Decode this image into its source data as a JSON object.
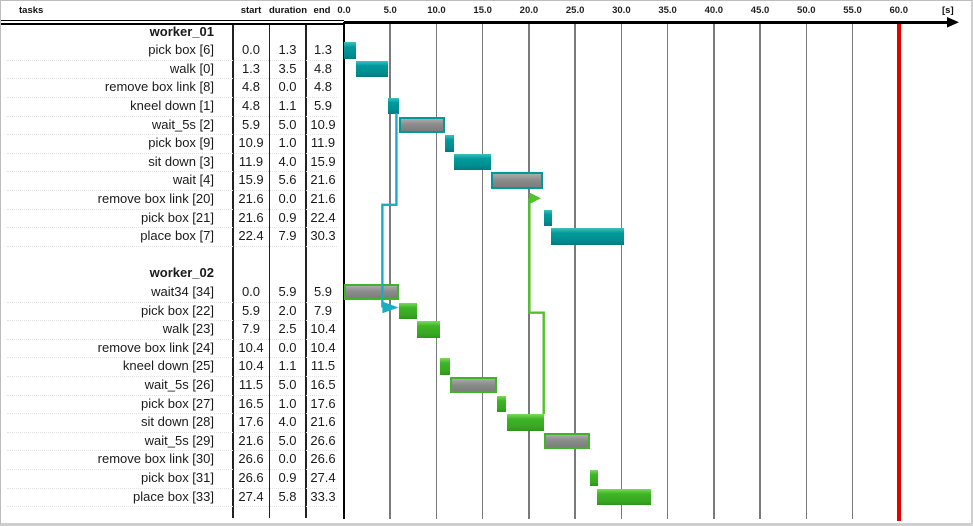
{
  "header": {
    "tasks_label": "tasks",
    "start_label": "start",
    "duration_label": "duration",
    "end_label": "end",
    "unit_label": "[s]"
  },
  "colors": {
    "worker_01_bar": "#009a9b",
    "worker_01_connector": "#18aec2",
    "worker_02_bar": "#3eb526",
    "worker_02_connector": "#4fc32a",
    "wait_fill": "#8c8c8c",
    "deadline_line": "#e60000",
    "gridline": "#7a7a7a",
    "axis": "#000000"
  },
  "chart_data": {
    "type": "gantt",
    "columns": [
      "tasks",
      "start",
      "duration",
      "end"
    ],
    "time_unit": "[s]",
    "axis": {
      "min": 0,
      "max": 60,
      "tick_step": 5,
      "deadline": 60,
      "tick_decimals": 1
    },
    "grid": true,
    "groups": [
      {
        "name": "worker_01",
        "color_key": "worker_01_bar",
        "tasks": [
          {
            "label": "pick box [6]",
            "start": 0.0,
            "duration": 1.3,
            "end": 1.3,
            "wait": false
          },
          {
            "label": "walk [0]",
            "start": 1.3,
            "duration": 3.5,
            "end": 4.8,
            "wait": false
          },
          {
            "label": "remove box link [8]",
            "start": 4.8,
            "duration": 0.0,
            "end": 4.8,
            "wait": false
          },
          {
            "label": "kneel down [1]",
            "start": 4.8,
            "duration": 1.1,
            "end": 5.9,
            "wait": false
          },
          {
            "label": "wait_5s [2]",
            "start": 5.9,
            "duration": 5.0,
            "end": 10.9,
            "wait": true
          },
          {
            "label": "pick box [9]",
            "start": 10.9,
            "duration": 1.0,
            "end": 11.9,
            "wait": false
          },
          {
            "label": "sit down [3]",
            "start": 11.9,
            "duration": 4.0,
            "end": 15.9,
            "wait": false
          },
          {
            "label": "wait [4]",
            "start": 15.9,
            "duration": 5.6,
            "end": 21.6,
            "wait": true
          },
          {
            "label": "remove box link [20]",
            "start": 21.6,
            "duration": 0.0,
            "end": 21.6,
            "wait": false
          },
          {
            "label": "pick box [21]",
            "start": 21.6,
            "duration": 0.9,
            "end": 22.4,
            "wait": false
          },
          {
            "label": "place box [7]",
            "start": 22.4,
            "duration": 7.9,
            "end": 30.3,
            "wait": false
          }
        ]
      },
      {
        "name": "worker_02",
        "color_key": "worker_02_bar",
        "tasks": [
          {
            "label": "wait34 [34]",
            "start": 0.0,
            "duration": 5.9,
            "end": 5.9,
            "wait": true
          },
          {
            "label": "pick box [22]",
            "start": 5.9,
            "duration": 2.0,
            "end": 7.9,
            "wait": false
          },
          {
            "label": "walk [23]",
            "start": 7.9,
            "duration": 2.5,
            "end": 10.4,
            "wait": false
          },
          {
            "label": "remove box link [24]",
            "start": 10.4,
            "duration": 0.0,
            "end": 10.4,
            "wait": false
          },
          {
            "label": "kneel down [25]",
            "start": 10.4,
            "duration": 1.1,
            "end": 11.5,
            "wait": false
          },
          {
            "label": "wait_5s [26]",
            "start": 11.5,
            "duration": 5.0,
            "end": 16.5,
            "wait": true
          },
          {
            "label": "pick box [27]",
            "start": 16.5,
            "duration": 1.0,
            "end": 17.6,
            "wait": false
          },
          {
            "label": "sit down [28]",
            "start": 17.6,
            "duration": 4.0,
            "end": 21.6,
            "wait": false
          },
          {
            "label": "wait_5s [29]",
            "start": 21.6,
            "duration": 5.0,
            "end": 26.6,
            "wait": true
          },
          {
            "label": "remove box link [30]",
            "start": 26.6,
            "duration": 0.0,
            "end": 26.6,
            "wait": false
          },
          {
            "label": "pick box [31]",
            "start": 26.6,
            "duration": 0.9,
            "end": 27.4,
            "wait": false
          },
          {
            "label": "place box [33]",
            "start": 27.4,
            "duration": 5.8,
            "end": 33.3,
            "wait": false
          }
        ]
      }
    ],
    "dependencies": [
      {
        "name": "connector-remove-box-link-8-to-pick-box-22",
        "from": "remove box link [8]",
        "to": "pick box [22]",
        "color": "#18aec2",
        "points": [
          [
            5.67,
            4.87
          ],
          [
            5.67,
            9.8
          ],
          [
            4.15,
            9.8
          ],
          [
            4.15,
            15.32
          ]
        ],
        "tip": [
          5.9,
          15.32
        ]
      },
      {
        "name": "connector-sit-down-28-to-remove-box-link-20",
        "from": "sit down [28]",
        "to": "remove box link [20]",
        "color": "#4fc32a",
        "points": [
          [
            21.6,
            21.05
          ],
          [
            21.6,
            15.6
          ],
          [
            20.05,
            15.6
          ],
          [
            20.05,
            9.45
          ]
        ],
        "tip": [
          21.3,
          9.45
        ]
      }
    ]
  }
}
